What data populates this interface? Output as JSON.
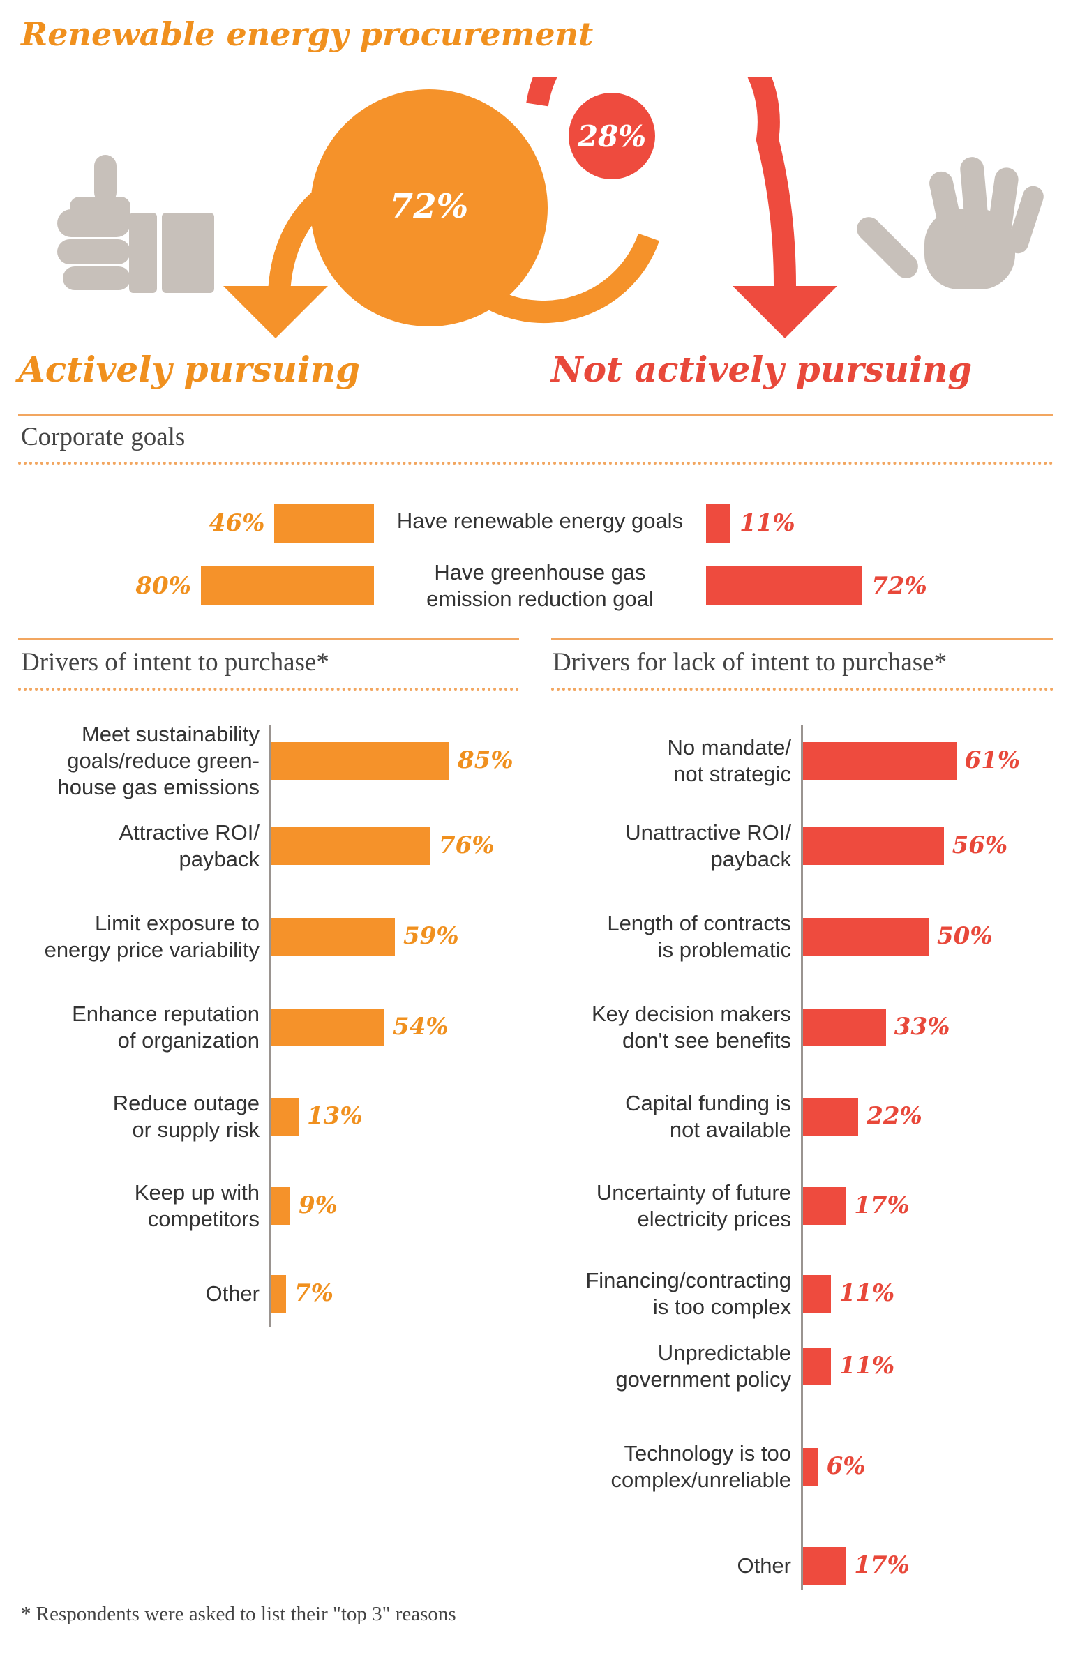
{
  "title": "Renewable energy procurement",
  "overview": {
    "pursuing_pct": "72%",
    "not_pursuing_pct": "28%",
    "pursuing_label": "Actively pursuing",
    "not_pursuing_label": "Not actively pursuing",
    "icons": [
      "thumbs-up-icon",
      "stop-hand-icon"
    ]
  },
  "colors": {
    "orange": "#f5922a",
    "red": "#ee4b3e",
    "grey": "#c7c0ba",
    "rule": "#f2a660"
  },
  "corporate_goals": {
    "title": "Corporate goals",
    "rows": [
      {
        "label": "Have renewable energy goals",
        "pursuing": 46,
        "pursuing_text": "46%",
        "not_pursuing": 11,
        "not_pursuing_text": "11%"
      },
      {
        "label": "Have greenhouse gas\nemission reduction goal",
        "pursuing": 80,
        "pursuing_text": "80%",
        "not_pursuing": 72,
        "not_pursuing_text": "72%"
      }
    ]
  },
  "drivers_intent": {
    "title": "Drivers of intent to purchase*",
    "items": [
      {
        "label": "Meet sustainability\ngoals/reduce green-\nhouse gas emissions",
        "value": 85,
        "text": "85%"
      },
      {
        "label": "Attractive ROI/\npayback",
        "value": 76,
        "text": "76%"
      },
      {
        "label": "Limit exposure to\nenergy price variability",
        "value": 59,
        "text": "59%"
      },
      {
        "label": "Enhance reputation\nof organization",
        "value": 54,
        "text": "54%"
      },
      {
        "label": "Reduce outage\nor supply risk",
        "value": 13,
        "text": "13%"
      },
      {
        "label": "Keep up with\ncompetitors",
        "value": 9,
        "text": "9%"
      },
      {
        "label": "Other",
        "value": 7,
        "text": "7%"
      }
    ]
  },
  "drivers_lack": {
    "title": "Drivers for lack of intent to purchase*",
    "items": [
      {
        "label": "No mandate/\nnot strategic",
        "value": 61,
        "text": "61%"
      },
      {
        "label": "Unattractive ROI/\npayback",
        "value": 56,
        "text": "56%"
      },
      {
        "label": "Length of contracts\nis problematic",
        "value": 50,
        "text": "50%"
      },
      {
        "label": "Key decision makers\ndon't see benefits",
        "value": 33,
        "text": "33%"
      },
      {
        "label": "Capital funding is\nnot available",
        "value": 22,
        "text": "22%"
      },
      {
        "label": "Uncertainty of future\nelectricity prices",
        "value": 17,
        "text": "17%"
      },
      {
        "label": "Financing/contracting\nis too complex",
        "value": 11,
        "text": "11%"
      },
      {
        "label": "Unpredictable\ngovernment policy",
        "value": 11,
        "text": "11%"
      },
      {
        "label": "Technology is too\ncomplex/unreliable",
        "value": 6,
        "text": "6%"
      },
      {
        "label": "Other",
        "value": 17,
        "text": "17%"
      }
    ]
  },
  "footnote": "* Respondents were asked to list their \"top 3\" reasons",
  "chart_data": [
    {
      "type": "pie",
      "title": "Renewable energy procurement",
      "categories": [
        "Actively pursuing",
        "Not actively pursuing"
      ],
      "values": [
        72,
        28
      ]
    },
    {
      "type": "bar",
      "title": "Corporate goals",
      "categories": [
        "Have renewable energy goals",
        "Have greenhouse gas emission reduction goal"
      ],
      "series": [
        {
          "name": "Actively pursuing",
          "values": [
            46,
            80
          ]
        },
        {
          "name": "Not actively pursuing",
          "values": [
            11,
            72
          ]
        }
      ]
    },
    {
      "type": "bar",
      "title": "Drivers of intent to purchase*",
      "categories": [
        "Meet sustainability goals/reduce greenhouse gas emissions",
        "Attractive ROI/payback",
        "Limit exposure to energy price variability",
        "Enhance reputation of organization",
        "Reduce outage or supply risk",
        "Keep up with competitors",
        "Other"
      ],
      "values": [
        85,
        76,
        59,
        54,
        13,
        9,
        7
      ]
    },
    {
      "type": "bar",
      "title": "Drivers for lack of intent to purchase*",
      "categories": [
        "No mandate/not strategic",
        "Unattractive ROI/payback",
        "Length of contracts is problematic",
        "Key decision makers don't see benefits",
        "Capital funding is not available",
        "Uncertainty of future electricity prices",
        "Financing/contracting is too complex",
        "Unpredictable government policy",
        "Technology is too complex/unreliable",
        "Other"
      ],
      "values": [
        61,
        56,
        50,
        33,
        22,
        17,
        11,
        11,
        6,
        17
      ]
    }
  ]
}
